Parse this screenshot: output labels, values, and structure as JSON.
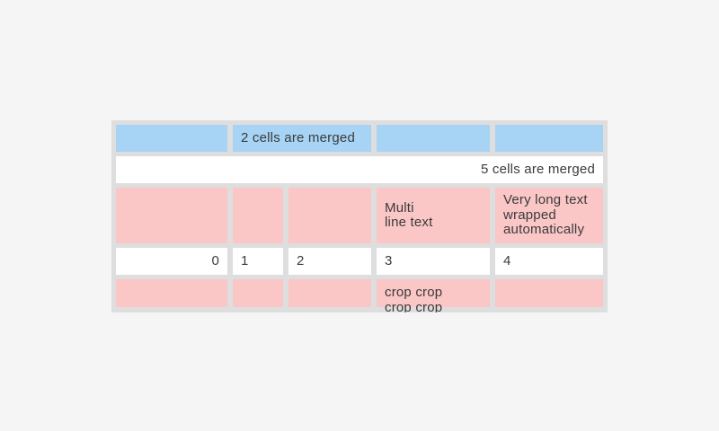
{
  "colors": {
    "page_bg": "#f5f5f5",
    "table_bg": "#dedede",
    "cell_blue": "#a7d3f4",
    "cell_pink": "#fac6c6",
    "cell_white": "#ffffff",
    "text": "#3b3b3b"
  },
  "table": {
    "rows": [
      {
        "cells": [
          {
            "text": ""
          },
          {
            "text": "2 cells are merged"
          },
          {
            "text": ""
          },
          {
            "text": ""
          }
        ]
      },
      {
        "cells": [
          {
            "text": "5 cells are merged"
          }
        ]
      },
      {
        "cells": [
          {
            "text": ""
          },
          {
            "text": ""
          },
          {
            "text": ""
          },
          {
            "text": "Multi\nline text"
          },
          {
            "text": "Very long text\nwrapped\nautomatically"
          }
        ]
      },
      {
        "cells": [
          {
            "text": "0"
          },
          {
            "text": "1"
          },
          {
            "text": "2"
          },
          {
            "text": "3"
          },
          {
            "text": "4"
          }
        ]
      },
      {
        "cells": [
          {
            "text": ""
          },
          {
            "text": ""
          },
          {
            "text": ""
          },
          {
            "text": "crop crop\ncrop crop"
          },
          {
            "text": ""
          }
        ]
      }
    ]
  }
}
